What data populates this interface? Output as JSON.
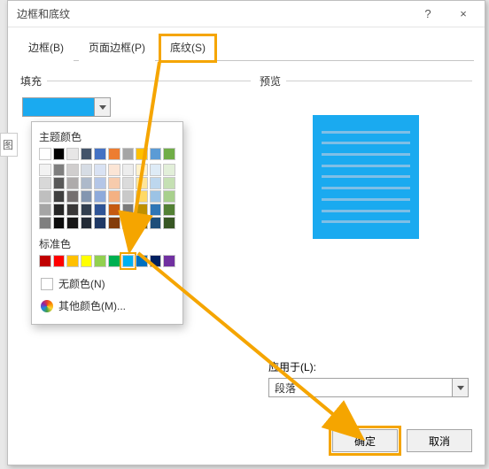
{
  "dialog": {
    "title": "边框和底纹",
    "help_icon": "?",
    "close_icon": "×"
  },
  "tabs": {
    "border": "边框(B)",
    "page_border": "页面边框(P)",
    "shading": "底纹(S)"
  },
  "left_panel": {
    "fill_label": "填充",
    "selected_fill": "#1aaaf0",
    "cropped_label": "图"
  },
  "color_panel": {
    "theme_title": "主题颜色",
    "theme_head": [
      "#ffffff",
      "#000000",
      "#e7e6e6",
      "#44546a",
      "#4472c4",
      "#ed7d31",
      "#a5a5a5",
      "#ffc000",
      "#5b9bd5",
      "#70ad47"
    ],
    "theme_tints": [
      [
        "#f2f2f2",
        "#7f7f7f",
        "#d0cece",
        "#d6dce4",
        "#d9e2f3",
        "#fbe5d5",
        "#ededed",
        "#fff2cc",
        "#deebf6",
        "#e2efd9"
      ],
      [
        "#d8d8d8",
        "#595959",
        "#aeabab",
        "#adb9ca",
        "#b4c6e7",
        "#f7cbac",
        "#dbdbdb",
        "#fee599",
        "#bdd7ee",
        "#c5e0b3"
      ],
      [
        "#bfbfbf",
        "#3f3f3f",
        "#757070",
        "#8496b0",
        "#8eaadb",
        "#f4b183",
        "#c9c9c9",
        "#ffd965",
        "#9cc3e5",
        "#a8d08d"
      ],
      [
        "#a5a5a5",
        "#262626",
        "#3a3838",
        "#323f4f",
        "#2f5496",
        "#c55a11",
        "#7b7b7b",
        "#bf9000",
        "#2e75b5",
        "#538135"
      ],
      [
        "#7f7f7f",
        "#0c0c0c",
        "#171616",
        "#222a35",
        "#1f3864",
        "#833c0b",
        "#525252",
        "#7f6000",
        "#1e4e79",
        "#375623"
      ]
    ],
    "standard_title": "标准色",
    "standard": [
      "#c00000",
      "#ff0000",
      "#ffc000",
      "#ffff00",
      "#92d050",
      "#00b050",
      "#00b0f0",
      "#0070c0",
      "#002060",
      "#7030a0"
    ],
    "selected_standard_index": 6,
    "no_color": "无颜色(N)",
    "more_colors": "其他颜色(M)..."
  },
  "right_panel": {
    "preview_label": "预览",
    "preview_fill": "#1aaaf0",
    "preview_line": "#7fbfe6"
  },
  "apply": {
    "label": "应用于(L):",
    "value": "段落"
  },
  "buttons": {
    "ok": "确定",
    "cancel": "取消"
  },
  "annotation": {
    "arrow_color": "#f5a500",
    "arrow_width": 4
  }
}
